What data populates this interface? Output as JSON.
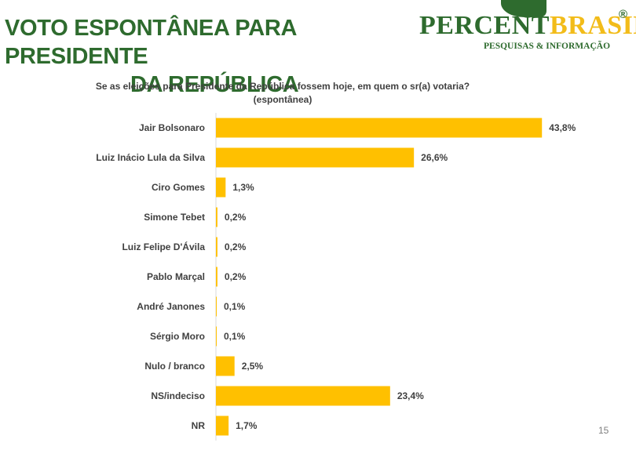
{
  "header": {
    "title_line1": "VOTO ESPONTÂNEA PARA PRESIDENTE",
    "title_line2": "DA REPÚBLICA"
  },
  "logo": {
    "word_part1": "PERCENT",
    "word_part2": "BRASIL",
    "registered": "®",
    "tagline": "PESQUISAS & INFORMAÇÃO"
  },
  "footer": {
    "page_number": "15"
  },
  "colors": {
    "bar": "#FFC000",
    "title_green": "#2E6B2E",
    "text": "#404040"
  },
  "chart_data": {
    "type": "bar",
    "orientation": "horizontal",
    "title": "Se as eleições para Presidente da República fossem hoje, em quem o sr(a) votaria?",
    "subtitle": "(espontânea)",
    "categories": [
      "Jair Bolsonaro",
      "Luiz Inácio Lula da Silva",
      "Ciro Gomes",
      "Simone Tebet",
      "Luiz Felipe D'Ávila",
      "Pablo Marçal",
      "André Janones",
      "Sérgio Moro",
      "Nulo / branco",
      "NS/indeciso",
      "NR"
    ],
    "values": [
      43.8,
      26.6,
      1.3,
      0.2,
      0.2,
      0.2,
      0.1,
      0.1,
      2.5,
      23.4,
      1.7
    ],
    "value_labels": [
      "43,8%",
      "26,6%",
      "1,3%",
      "0,2%",
      "0,2%",
      "0,2%",
      "0,1%",
      "0,1%",
      "2,5%",
      "23,4%",
      "1,7%"
    ],
    "xlim": [
      0,
      50
    ],
    "grid": false,
    "legend": "none"
  }
}
